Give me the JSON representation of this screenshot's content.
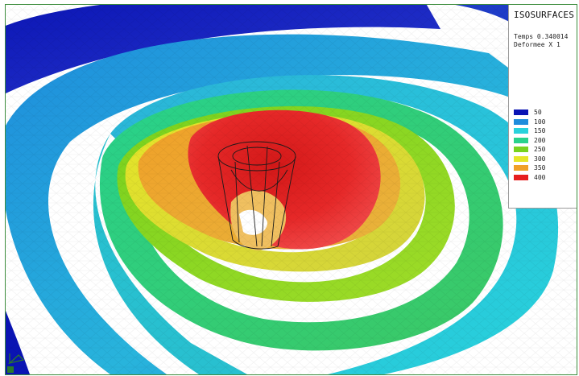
{
  "legend": {
    "title": "ISOSURFACES",
    "time_label": "Temps 0.340014",
    "deform_label": "Deformee X 1",
    "items": [
      {
        "label": "50",
        "color": "#0a14b4"
      },
      {
        "label": "100",
        "color": "#1e8cdc"
      },
      {
        "label": "150",
        "color": "#28d2dc"
      },
      {
        "label": "200",
        "color": "#28d28c"
      },
      {
        "label": "250",
        "color": "#78d21e"
      },
      {
        "label": "300",
        "color": "#e6e628"
      },
      {
        "label": "350",
        "color": "#f0a028"
      },
      {
        "label": "400",
        "color": "#e61e1e"
      }
    ]
  },
  "viewport": {
    "background": "#ffffff",
    "corner_icon": "axis-triad-icon"
  }
}
